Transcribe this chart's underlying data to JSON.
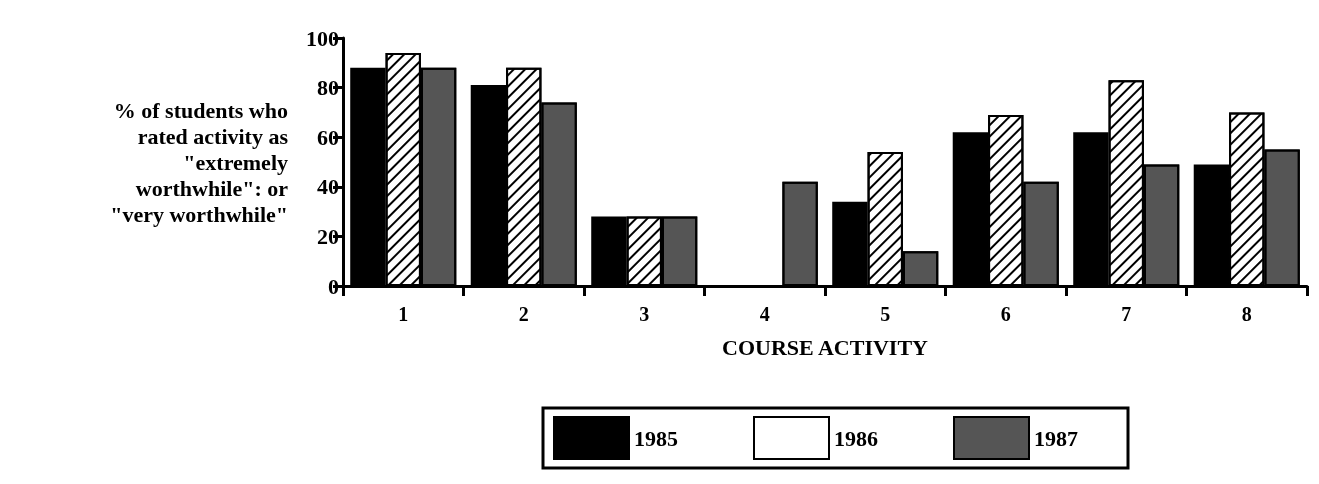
{
  "chart_data": {
    "type": "bar",
    "xlabel": "COURSE ACTIVITY",
    "ylabel": "% of students who\nrated activity as\n\"extremely\nworthwhile\": or\n\"very worthwhile\"",
    "categories": [
      "1",
      "2",
      "3",
      "4",
      "5",
      "6",
      "7",
      "8"
    ],
    "series": [
      {
        "name": "1985",
        "color": "#000000",
        "values": [
          88,
          81,
          28,
          null,
          34,
          62,
          62,
          49
        ]
      },
      {
        "name": "1986",
        "color": "#ffffff",
        "values": [
          94,
          88,
          28,
          null,
          54,
          69,
          83,
          70
        ]
      },
      {
        "name": "1987",
        "color": "#555555",
        "values": [
          88,
          74,
          28,
          42,
          14,
          42,
          49,
          55
        ]
      }
    ],
    "ylim": [
      0,
      100
    ],
    "yticks": [
      0,
      20,
      40,
      60,
      80,
      100
    ],
    "grid": false,
    "legend": "bottom"
  }
}
